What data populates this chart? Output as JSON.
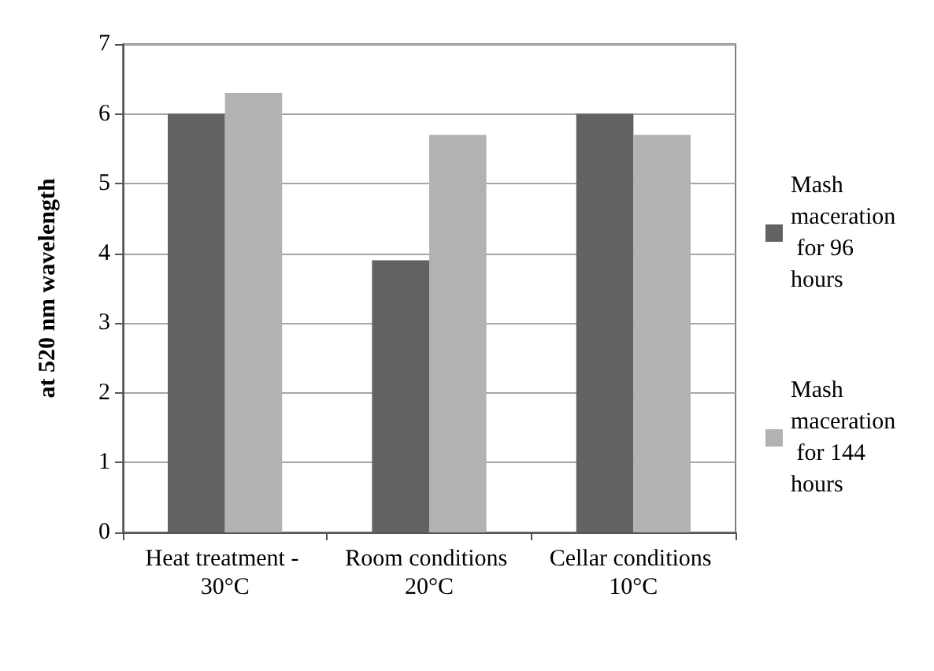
{
  "chart_data": {
    "type": "bar",
    "ylabel": "at 520 nm wavelength",
    "categories": [
      "Heat treatment - 30°C",
      "Room conditions 20°C",
      "Cellar conditions 10°C"
    ],
    "series": [
      {
        "name": "Mash maceration for 96 hours",
        "color": "#626262",
        "values": [
          6.0,
          3.9,
          6.0
        ]
      },
      {
        "name": "Mash maceration for 144 hours",
        "color": "#b2b2b2",
        "values": [
          6.3,
          5.7,
          5.7
        ]
      }
    ],
    "ylim": [
      0,
      7
    ],
    "yticks": [
      0,
      1,
      2,
      3,
      4,
      5,
      6,
      7
    ],
    "grid": "y",
    "legend": "right"
  }
}
